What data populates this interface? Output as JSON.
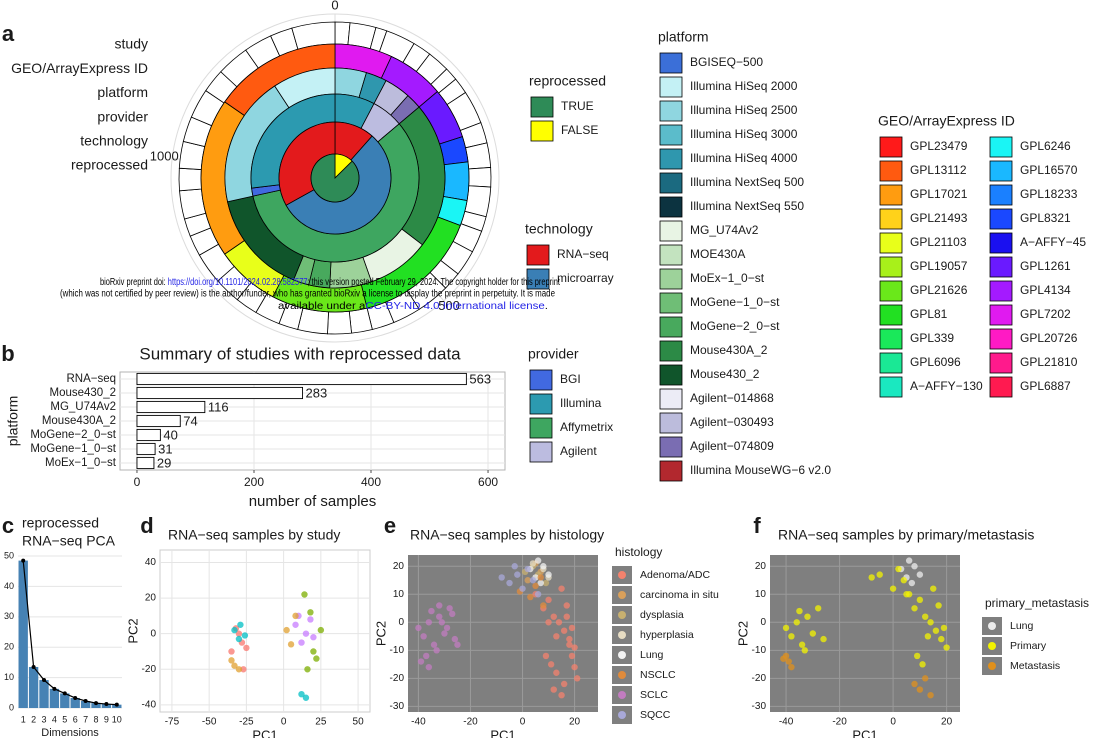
{
  "chart_data": [
    {
      "type": "radial",
      "panel": "a",
      "lim": [
        0,
        1300
      ],
      "ticks": [
        0,
        500,
        1000
      ],
      "rings": [
        {
          "label": "study",
          "color": "#ffffff",
          "values": [
            20,
            35,
            15,
            40,
            25,
            30,
            18,
            22,
            45,
            28,
            33,
            26,
            40,
            20,
            30,
            35,
            25,
            45,
            38,
            30,
            28,
            32,
            40,
            26,
            34,
            30,
            36,
            42,
            28,
            24,
            38,
            30,
            36,
            34,
            40,
            32,
            44,
            38,
            30,
            58
          ]
        },
        {
          "label": "GEO/ArrayExpress ID",
          "segments": [
            {
              "value": 90,
              "color": "#e01af0"
            },
            {
              "value": 90,
              "color": "#a41aff"
            },
            {
              "value": 80,
              "color": "#6a1aff"
            },
            {
              "value": 40,
              "color": "#1a48ff"
            },
            {
              "value": 60,
              "color": "#1ab8ff"
            },
            {
              "value": 40,
              "color": "#1af5f5"
            },
            {
              "value": 200,
              "color": "#22e022"
            },
            {
              "value": 150,
              "color": "#6ae81a"
            },
            {
              "value": 100,
              "color": "#e8ff1a"
            },
            {
              "value": 250,
              "color": "#ff9c10"
            },
            {
              "value": 200,
              "color": "#ff5a10"
            }
          ]
        },
        {
          "label": "platform",
          "segments": [
            {
              "value": 60,
              "color": "#8fd6e0"
            },
            {
              "value": 40,
              "color": "#2f97ae"
            },
            {
              "value": 50,
              "color": "#bcbcdc"
            },
            {
              "value": 30,
              "color": "#7a6db2"
            },
            {
              "value": 280,
              "color": "#2c8a46"
            },
            {
              "value": 120,
              "color": "#e8f4e4"
            },
            {
              "value": 80,
              "color": "#9dd29a"
            },
            {
              "value": 40,
              "color": "#48a95d"
            },
            {
              "value": 30,
              "color": "#6fbe76"
            },
            {
              "value": 200,
              "color": "#10552b"
            },
            {
              "value": 250,
              "color": "#8fd6e0"
            },
            {
              "value": 120,
              "color": "#c4f1f5"
            }
          ]
        },
        {
          "label": "provider",
          "segments": [
            {
              "value": 100,
              "color": "#2c9ab0"
            },
            {
              "value": 80,
              "color": "#bcbce0"
            },
            {
              "value": 750,
              "color": "#3ea660"
            },
            {
              "value": 20,
              "color": "#4169e1"
            },
            {
              "value": 350,
              "color": "#2c9ab0"
            }
          ]
        },
        {
          "label": "technology",
          "segments": [
            {
              "value": 150,
              "color": "#e31a1c"
            },
            {
              "value": 720,
              "color": "#3a7fb5"
            },
            {
              "value": 430,
              "color": "#e31a1c"
            }
          ]
        },
        {
          "label": "reprocessed",
          "segments": [
            {
              "value": 164,
              "color": "#ffff00"
            },
            {
              "value": 1136,
              "color": "#2e8b57"
            }
          ]
        }
      ],
      "legends": [
        {
          "title": "reprocessed",
          "items": [
            {
              "label": "TRUE",
              "color": "#2e8b57"
            },
            {
              "label": "FALSE",
              "color": "#ffff00"
            }
          ]
        },
        {
          "title": "technology",
          "items": [
            {
              "label": "RNA−seq",
              "color": "#e31a1c"
            },
            {
              "label": "microarray",
              "color": "#3a7fb5"
            }
          ]
        },
        {
          "title": "platform",
          "items": [
            {
              "label": "BGISEQ−500",
              "color": "#3b6fd8"
            },
            {
              "label": "Illumina HiSeq 2000",
              "color": "#c4f1f5"
            },
            {
              "label": "Illumina HiSeq 2500",
              "color": "#8fd6e0"
            },
            {
              "label": "Illumina HiSeq 3000",
              "color": "#5bbccb"
            },
            {
              "label": "Illumina HiSeq 4000",
              "color": "#2f97ae"
            },
            {
              "label": "Illumina NextSeq 500",
              "color": "#1b6a80"
            },
            {
              "label": "Illumina NextSeq 550",
              "color": "#0c3340"
            },
            {
              "label": "MG_U74Av2",
              "color": "#e8f4e4"
            },
            {
              "label": "MOE430A",
              "color": "#c3e3bf"
            },
            {
              "label": "MoEx−1_0−st",
              "color": "#9dd29a"
            },
            {
              "label": "MoGene−1_0−st",
              "color": "#6fbe76"
            },
            {
              "label": "MoGene−2_0−st",
              "color": "#48a95d"
            },
            {
              "label": "Mouse430A_2",
              "color": "#2c8a46"
            },
            {
              "label": "Mouse430_2",
              "color": "#10552b"
            },
            {
              "label": "Agilent−014868",
              "color": "#ececf6"
            },
            {
              "label": "Agilent−030493",
              "color": "#bcbcdc"
            },
            {
              "label": "Agilent−074809",
              "color": "#7a6db2"
            },
            {
              "label": "Illumina MouseWG−6 v2.0",
              "color": "#b2282e"
            }
          ]
        },
        {
          "title": "GEO/ArrayExpress ID",
          "items": [
            {
              "label": "GPL23479",
              "color": "#ff1a1a"
            },
            {
              "label": "GPL13112",
              "color": "#ff5a10"
            },
            {
              "label": "GPL17021",
              "color": "#ff9c10"
            },
            {
              "label": "GPL21493",
              "color": "#ffd21a"
            },
            {
              "label": "GPL21103",
              "color": "#e8ff1a"
            },
            {
              "label": "GPL19057",
              "color": "#a8f01a"
            },
            {
              "label": "GPL21626",
              "color": "#6ae81a"
            },
            {
              "label": "GPL81",
              "color": "#22e022"
            },
            {
              "label": "GPL339",
              "color": "#1ae85a"
            },
            {
              "label": "GPL6096",
              "color": "#1ae895"
            },
            {
              "label": "A−AFFY−130",
              "color": "#1ae8c0"
            },
            {
              "label": "GPL6246",
              "color": "#1af5f5"
            },
            {
              "label": "GPL16570",
              "color": "#1ab8ff"
            },
            {
              "label": "GPL18233",
              "color": "#1a80ff"
            },
            {
              "label": "GPL8321",
              "color": "#1a48ff"
            },
            {
              "label": "A−AFFY−45",
              "color": "#1a10f0"
            },
            {
              "label": "GPL1261",
              "color": "#6a1aff"
            },
            {
              "label": "GPL4134",
              "color": "#a41aff"
            },
            {
              "label": "GPL7202",
              "color": "#e01af0"
            },
            {
              "label": "GPL20726",
              "color": "#ff1ac4"
            },
            {
              "label": "GPL21810",
              "color": "#ff1a8c"
            },
            {
              "label": "GPL6887",
              "color": "#ff1a50"
            }
          ]
        },
        {
          "title": "provider",
          "items": [
            {
              "label": "BGI",
              "color": "#4169e1"
            },
            {
              "label": "Illumina",
              "color": "#2c9ab0"
            },
            {
              "label": "Affymetrix",
              "color": "#3ea660"
            },
            {
              "label": "Agilent",
              "color": "#bcbce0"
            }
          ]
        }
      ]
    },
    {
      "type": "bar",
      "panel": "b",
      "title": "Summary of studies with reprocessed data",
      "categories": [
        "RNA−seq",
        "Mouse430_2",
        "MG_U74Av2",
        "Mouse430A_2",
        "MoGene−2_0−st",
        "MoGene−1_0−st",
        "MoEx−1_0−st"
      ],
      "values": [
        563,
        283,
        116,
        74,
        40,
        31,
        29
      ],
      "color": "#ffffff",
      "xlim": [
        -29,
        629
      ],
      "xticks": [
        0,
        200,
        400,
        600
      ],
      "xlabel": "number of samples",
      "ylabel": "platform",
      "grid": true
    },
    {
      "type": "scree",
      "panel": "c",
      "title": [
        "reprocessed",
        "RNA−seq PCA"
      ],
      "categories": [
        "1",
        "2",
        "3",
        "4",
        "5",
        "6",
        "7",
        "8",
        "9",
        "10"
      ],
      "values": [
        48.5,
        13.5,
        9.2,
        6.3,
        4.8,
        3.3,
        2.3,
        1.6,
        1.3,
        1.1
      ],
      "color": "#4682b4",
      "line_color": "#000000",
      "ylim": [
        0,
        51
      ],
      "yticks": [
        0,
        10,
        20,
        30,
        40,
        50
      ],
      "xlabel": "Dimensions",
      "grid": true
    },
    {
      "type": "scatter",
      "panel": "d",
      "title": "RNA−seq samples by study",
      "xlabel": "PC1",
      "ylabel": "PC2",
      "xlim": [
        -83,
        58
      ],
      "xticks": [
        -75,
        -50,
        -25,
        0,
        25,
        50
      ],
      "ylim": [
        -44,
        47
      ],
      "yticks": [
        -40,
        -20,
        0,
        20,
        40
      ],
      "background": "#ffffff",
      "grid": true,
      "series": [
        {
          "color": "#f8766d",
          "x": [
            -30,
            -28,
            -32,
            -25,
            -27,
            -35
          ],
          "y": [
            0,
            -5,
            3,
            -8,
            -20,
            -10
          ]
        },
        {
          "color": "#00bfc4",
          "x": [
            -33,
            -30,
            -29,
            -26,
            12,
            15
          ],
          "y": [
            2,
            -3,
            5,
            -1,
            -34,
            -36
          ]
        },
        {
          "color": "#c77cff",
          "x": [
            8,
            10,
            12,
            15,
            18,
            20
          ],
          "y": [
            5,
            10,
            -5,
            0,
            8,
            -2
          ]
        },
        {
          "color": "#7cae00",
          "x": [
            18,
            20,
            22,
            14,
            25,
            16
          ],
          "y": [
            12,
            -10,
            -14,
            22,
            2,
            -20
          ]
        },
        {
          "color": "#e0a030",
          "x": [
            -35,
            -33,
            -30,
            2,
            5,
            8
          ],
          "y": [
            -15,
            -18,
            -20,
            2,
            -6,
            10
          ]
        }
      ]
    },
    {
      "type": "scatter",
      "panel": "e",
      "title": "RNA−seq samples by histology",
      "xlabel": "PC1",
      "ylabel": "PC2",
      "xlim": [
        -44,
        29
      ],
      "xticks": [
        -40,
        -20,
        0,
        20
      ],
      "ylim": [
        -32,
        24
      ],
      "yticks": [
        -30,
        -20,
        -10,
        0,
        10,
        20
      ],
      "background": "#7f7f7f",
      "grid": true,
      "legend_title": "histology",
      "series": [
        {
          "name": "Adenoma/ADC",
          "color": "#f4826d",
          "x": [
            5,
            8,
            10,
            12,
            14,
            16,
            18,
            20,
            9,
            11,
            13,
            15,
            17,
            19,
            21,
            10,
            13,
            16,
            18,
            20,
            12,
            15,
            17,
            19
          ],
          "y": [
            10,
            5,
            8,
            2,
            0,
            -3,
            -6,
            -9,
            -12,
            -15,
            -5,
            12,
            6,
            -2,
            -20,
            0,
            -18,
            -22,
            -8,
            -16,
            -24,
            -26,
            2,
            -12
          ]
        },
        {
          "name": "carcinoma in situ",
          "color": "#d9a05b",
          "x": [
            2,
            7,
            5
          ],
          "y": [
            15,
            18,
            21
          ]
        },
        {
          "name": "dysplasia",
          "color": "#c8b070",
          "x": [
            1,
            4,
            9,
            6
          ],
          "y": [
            18,
            20,
            14,
            17
          ]
        },
        {
          "name": "hyperplasia",
          "color": "#e6dcc3",
          "x": [
            4,
            8,
            10
          ],
          "y": [
            21,
            19,
            16
          ]
        },
        {
          "name": "Lung",
          "color": "#f2f2f2",
          "x": [
            3,
            6,
            8,
            10,
            5,
            7
          ],
          "y": [
            19,
            22,
            20,
            17,
            16,
            14
          ]
        },
        {
          "name": "NSCLC",
          "color": "#e08b3c",
          "x": [
            3,
            5,
            7,
            -1,
            8
          ],
          "y": [
            9,
            13,
            16,
            11,
            6
          ]
        },
        {
          "name": "SCLC",
          "color": "#c27cc0",
          "x": [
            -40,
            -38,
            -36,
            -34,
            -32,
            -30,
            -28,
            -26,
            -37,
            -35,
            -33,
            -31,
            -29,
            -27,
            -39,
            -36,
            -32,
            -25
          ],
          "y": [
            -2,
            -5,
            0,
            -8,
            2,
            -4,
            5,
            -6,
            -12,
            4,
            -10,
            0,
            -2,
            3,
            -14,
            -16,
            6,
            -8
          ]
        },
        {
          "name": "SQCC",
          "color": "#a8a8d8",
          "x": [
            -5,
            -2,
            0,
            2,
            -8,
            4,
            6,
            -3
          ],
          "y": [
            14,
            17,
            12,
            19,
            16,
            15,
            10,
            20
          ]
        }
      ]
    },
    {
      "type": "scatter",
      "panel": "f",
      "title": "RNA−seq samples by primary/metastasis",
      "xlabel": "PC1",
      "ylabel": "PC2",
      "xlim": [
        -46,
        25
      ],
      "xticks": [
        -40,
        -20,
        0,
        20
      ],
      "ylim": [
        -32,
        24
      ],
      "yticks": [
        -30,
        -20,
        -10,
        0,
        10,
        20
      ],
      "background": "#7f7f7f",
      "grid": true,
      "legend_title": "primary_metastasis",
      "series": [
        {
          "name": "Lung",
          "color": "#ececec",
          "x": [
            3,
            6,
            8,
            10,
            5,
            7
          ],
          "y": [
            19,
            22,
            20,
            17,
            16,
            14
          ]
        },
        {
          "name": "Primary",
          "color": "#f3f300",
          "x": [
            -40,
            -38,
            -36,
            -34,
            -32,
            -30,
            -28,
            -26,
            -35,
            -33,
            5,
            8,
            10,
            12,
            14,
            16,
            18,
            20,
            9,
            11,
            13,
            15,
            17,
            19,
            0,
            -5,
            2,
            -8,
            4,
            6
          ],
          "y": [
            -2,
            -5,
            0,
            -8,
            2,
            -4,
            5,
            -6,
            4,
            -10,
            10,
            5,
            8,
            2,
            0,
            -3,
            -6,
            -9,
            -12,
            -15,
            -5,
            12,
            6,
            -2,
            12,
            17,
            19,
            16,
            15,
            10
          ]
        },
        {
          "name": "Metastasis",
          "color": "#e0901c",
          "x": [
            -40,
            -39,
            -38,
            -41,
            8,
            10,
            12,
            14
          ],
          "y": [
            -12,
            -14,
            -16,
            -13,
            -22,
            -24,
            -20,
            -26
          ]
        }
      ]
    }
  ],
  "preprint_notice": {
    "line1": [
      "bioRxiv preprint doi: ",
      "https://doi.org/10.1101/2024.02.28.582577",
      "; this version posted February 29, 2024. The copyright holder for this preprint"
    ],
    "line2": "(which was not certified by peer review) is the author/funder, who has granted bioRxiv a license to display the preprint in perpetuity. It is made",
    "line3": [
      "available under a",
      "CC-BY-ND 4.0 International license",
      "."
    ]
  }
}
